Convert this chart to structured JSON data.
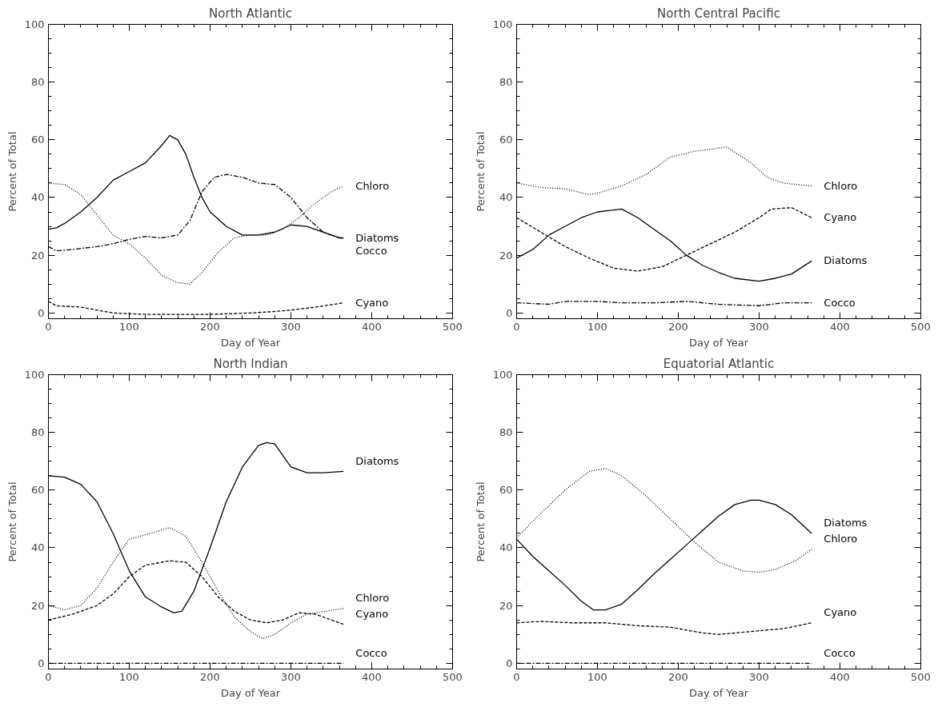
{
  "chart_data": [
    {
      "type": "line",
      "title": "North Atlantic",
      "xlabel": "Day of Year",
      "ylabel": "Percent of Total",
      "xlim": [
        0,
        500
      ],
      "ylim": [
        -2,
        100
      ],
      "xticks": [
        0,
        100,
        200,
        300,
        400,
        500
      ],
      "yticks": [
        0,
        20,
        40,
        60,
        80,
        100
      ],
      "grid": false,
      "legend": false,
      "marker": "none",
      "series": [
        {
          "name": "Chloro",
          "color": "#000000",
          "line_style": "dotted",
          "x": [
            0,
            20,
            40,
            60,
            80,
            100,
            120,
            140,
            160,
            175,
            190,
            210,
            230,
            250,
            270,
            290,
            310,
            330,
            350,
            365
          ],
          "values": [
            45,
            44.5,
            41,
            34,
            27,
            24,
            19,
            13,
            10.5,
            10,
            14,
            21,
            26,
            27,
            27,
            29,
            33,
            38,
            42,
            44
          ]
        },
        {
          "name": "Diatoms",
          "color": "#000000",
          "line_style": "solid",
          "x": [
            0,
            10,
            20,
            40,
            60,
            80,
            100,
            120,
            140,
            150,
            160,
            170,
            180,
            190,
            200,
            220,
            240,
            260,
            280,
            300,
            320,
            340,
            360,
            365
          ],
          "values": [
            29,
            29.5,
            31,
            35,
            40,
            46,
            49,
            52,
            58,
            61.5,
            60,
            55,
            47,
            40,
            35,
            30,
            27,
            27,
            28,
            30.5,
            30,
            28,
            26,
            26
          ]
        },
        {
          "name": "Cocco",
          "color": "#000000",
          "line_style": "dashdot",
          "x": [
            0,
            10,
            30,
            60,
            80,
            100,
            120,
            140,
            160,
            175,
            190,
            205,
            220,
            240,
            260,
            280,
            300,
            320,
            340,
            360,
            365
          ],
          "values": [
            23,
            21.5,
            22,
            23,
            24,
            25.5,
            26.5,
            26,
            27,
            32,
            42,
            47,
            48,
            47,
            45,
            44.5,
            40,
            33,
            28,
            26,
            26
          ]
        },
        {
          "name": "Cyano",
          "color": "#000000",
          "line_style": "dashed",
          "x": [
            0,
            10,
            40,
            60,
            80,
            120,
            160,
            200,
            250,
            280,
            300,
            330,
            365
          ],
          "values": [
            4,
            2.5,
            2,
            1,
            0,
            -0.5,
            -0.5,
            -0.5,
            0,
            0.5,
            1,
            2,
            3.5
          ]
        }
      ]
    },
    {
      "type": "line",
      "title": "North Central Pacific",
      "xlabel": "Day of Year",
      "ylabel": "Percent of Total",
      "xlim": [
        0,
        500
      ],
      "ylim": [
        -2,
        100
      ],
      "xticks": [
        0,
        100,
        200,
        300,
        400,
        500
      ],
      "yticks": [
        0,
        20,
        40,
        60,
        80,
        100
      ],
      "grid": false,
      "legend": false,
      "marker": "none",
      "series": [
        {
          "name": "Chloro",
          "color": "#000000",
          "line_style": "dotted",
          "x": [
            0,
            30,
            60,
            90,
            100,
            130,
            160,
            190,
            220,
            260,
            290,
            310,
            330,
            365
          ],
          "values": [
            45,
            43.5,
            43,
            41,
            41.5,
            44,
            48,
            54,
            56,
            57.5,
            52,
            47,
            45,
            44
          ]
        },
        {
          "name": "Cyano",
          "color": "#000000",
          "line_style": "dashed",
          "x": [
            0,
            30,
            60,
            90,
            120,
            150,
            180,
            210,
            240,
            270,
            300,
            315,
            340,
            365
          ],
          "values": [
            33,
            28,
            23,
            19,
            15.5,
            14.5,
            16,
            20,
            24,
            28,
            33,
            36,
            36.5,
            33
          ]
        },
        {
          "name": "Diatoms",
          "color": "#000000",
          "line_style": "solid",
          "x": [
            0,
            20,
            40,
            60,
            80,
            100,
            130,
            150,
            170,
            190,
            210,
            230,
            250,
            270,
            300,
            320,
            340,
            365
          ],
          "values": [
            19,
            22,
            27,
            30,
            33,
            35,
            36,
            33,
            29,
            25,
            20,
            16.5,
            14,
            12,
            11,
            12,
            13.5,
            18
          ]
        },
        {
          "name": "Cocco",
          "color": "#000000",
          "line_style": "dashdot",
          "x": [
            0,
            40,
            60,
            100,
            130,
            170,
            210,
            250,
            300,
            330,
            365
          ],
          "values": [
            3.5,
            3,
            4,
            4,
            3.5,
            3.5,
            4,
            3,
            2.5,
            3.5,
            3.5
          ]
        }
      ]
    },
    {
      "type": "line",
      "title": "North Indian",
      "xlabel": "Day of Year",
      "ylabel": "Percent of Total",
      "xlim": [
        0,
        500
      ],
      "ylim": [
        -2,
        100
      ],
      "xticks": [
        0,
        100,
        200,
        300,
        400,
        500
      ],
      "yticks": [
        0,
        20,
        40,
        60,
        80,
        100
      ],
      "grid": false,
      "legend": false,
      "marker": "none",
      "series": [
        {
          "name": "Diatoms",
          "color": "#000000",
          "line_style": "solid",
          "x": [
            0,
            20,
            40,
            60,
            80,
            100,
            120,
            140,
            155,
            165,
            180,
            200,
            220,
            240,
            260,
            270,
            280,
            300,
            320,
            340,
            365
          ],
          "values": [
            65,
            64.5,
            62,
            56,
            45,
            32,
            23,
            19.5,
            17.5,
            18,
            25,
            40,
            56,
            68,
            75.5,
            76.5,
            76,
            68,
            66,
            66,
            66.5
          ]
        },
        {
          "name": "Chloro",
          "color": "#000000",
          "line_style": "dotted",
          "x": [
            0,
            20,
            40,
            60,
            80,
            100,
            120,
            150,
            170,
            190,
            210,
            230,
            250,
            265,
            280,
            300,
            320,
            365
          ],
          "values": [
            20,
            18.5,
            20,
            26,
            35,
            43,
            44.5,
            47,
            44,
            35,
            25,
            16,
            11,
            8.5,
            10,
            14,
            17,
            19
          ]
        },
        {
          "name": "Cyano",
          "color": "#000000",
          "line_style": "dashed",
          "x": [
            0,
            30,
            60,
            80,
            100,
            120,
            150,
            170,
            190,
            210,
            230,
            250,
            270,
            290,
            310,
            330,
            365
          ],
          "values": [
            15,
            17,
            20,
            24,
            30,
            34,
            35.5,
            35,
            30,
            23,
            18,
            15,
            14,
            15,
            17.5,
            17,
            13.5
          ]
        },
        {
          "name": "Cocco",
          "color": "#000000",
          "line_style": "dashdot",
          "x": [
            0,
            100,
            200,
            300,
            365
          ],
          "values": [
            0,
            0,
            0,
            0,
            0
          ]
        }
      ]
    },
    {
      "type": "line",
      "title": "Equatorial Atlantic",
      "xlabel": "Day of Year",
      "ylabel": "Percent of Total",
      "xlim": [
        0,
        500
      ],
      "ylim": [
        -2,
        100
      ],
      "xticks": [
        0,
        100,
        200,
        300,
        400,
        500
      ],
      "yticks": [
        0,
        20,
        40,
        60,
        80,
        100
      ],
      "grid": false,
      "legend": false,
      "marker": "none",
      "series": [
        {
          "name": "Diatoms",
          "color": "#000000",
          "line_style": "solid",
          "x": [
            0,
            20,
            40,
            60,
            80,
            95,
            110,
            130,
            150,
            170,
            190,
            210,
            230,
            250,
            270,
            290,
            300,
            320,
            340,
            365
          ],
          "values": [
            43,
            37,
            32,
            27,
            21.5,
            18.5,
            18.5,
            20.5,
            25.5,
            31,
            36,
            41,
            46,
            51,
            55,
            56.5,
            56.5,
            55,
            51.5,
            45
          ]
        },
        {
          "name": "Chloro",
          "color": "#000000",
          "line_style": "dotted",
          "x": [
            0,
            30,
            60,
            90,
            110,
            130,
            160,
            190,
            220,
            250,
            280,
            300,
            320,
            345,
            365
          ],
          "values": [
            43.5,
            52,
            60,
            66.5,
            67.5,
            65,
            58,
            50,
            42,
            35,
            32,
            31.5,
            32.5,
            35.5,
            39.5
          ]
        },
        {
          "name": "Cyano",
          "color": "#000000",
          "line_style": "dashed",
          "x": [
            0,
            30,
            70,
            110,
            150,
            190,
            230,
            250,
            290,
            330,
            365
          ],
          "values": [
            14,
            14.5,
            14,
            14,
            13,
            12.5,
            10.5,
            10,
            11,
            12,
            14
          ]
        },
        {
          "name": "Cocco",
          "color": "#000000",
          "line_style": "dashdot",
          "x": [
            0,
            100,
            200,
            300,
            365
          ],
          "values": [
            0,
            0,
            0,
            0,
            0
          ]
        }
      ]
    }
  ]
}
